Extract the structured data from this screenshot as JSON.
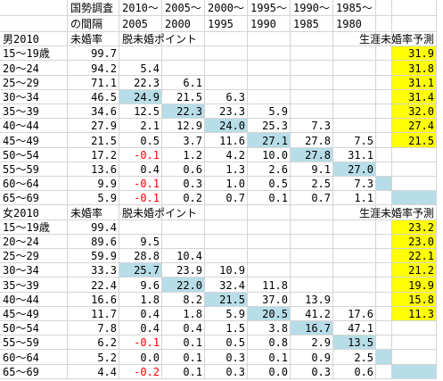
{
  "table": {
    "header": [
      [
        "国勢調査",
        "2010～",
        "2005～",
        "2000～",
        "1995～",
        "1990～",
        "1985～"
      ],
      [
        "の間隔",
        "2005",
        "2000",
        "1995",
        "1990",
        "1985",
        "1980"
      ]
    ],
    "sections": [
      {
        "title": "男2010",
        "rate_label": "未婚率",
        "points_label": "脱未婚ポイント",
        "forecast_label": "生涯未婚率予測",
        "rows": [
          {
            "age": "15～19歳",
            "rate": "99.7",
            "points": [],
            "forecast": "31.9"
          },
          {
            "age": "20～24",
            "rate": "94.2",
            "points": [
              "5.4"
            ],
            "forecast": "31.8"
          },
          {
            "age": "25～29",
            "rate": "71.1",
            "points": [
              "22.3",
              "6.1"
            ],
            "forecast": "31.1"
          },
          {
            "age": "30～34",
            "rate": "46.5",
            "points": [
              "24.9",
              "21.5",
              "6.3"
            ],
            "forecast": "31.4"
          },
          {
            "age": "35～39",
            "rate": "34.6",
            "points": [
              "12.5",
              "22.3",
              "23.3",
              "5.9"
            ],
            "forecast": "32.0"
          },
          {
            "age": "40～44",
            "rate": "27.9",
            "points": [
              "2.1",
              "12.9",
              "24.0",
              "25.3",
              "7.3"
            ],
            "forecast": "27.4"
          },
          {
            "age": "45～49",
            "rate": "21.5",
            "points": [
              "0.5",
              "3.7",
              "11.6",
              "27.1",
              "27.8",
              "7.5"
            ],
            "forecast": "21.5"
          },
          {
            "age": "50～54",
            "rate": "17.2",
            "points": [
              "-0.1",
              "1.2",
              "4.2",
              "10.0",
              "27.8",
              "31.1"
            ]
          },
          {
            "age": "55～59",
            "rate": "13.6",
            "points": [
              "0.4",
              "0.6",
              "1.3",
              "2.6",
              "9.1",
              "27.0"
            ]
          },
          {
            "age": "60～64",
            "rate": "9.9",
            "points": [
              "-0.1",
              "0.3",
              "1.0",
              "0.5",
              "2.5",
              "7.3"
            ]
          },
          {
            "age": "65～69",
            "rate": "5.9",
            "points": [
              "-0.1",
              "0.2",
              "0.7",
              "0.1",
              "0.7",
              "1.1"
            ]
          }
        ]
      },
      {
        "title": "女2010",
        "rate_label": "未婚率",
        "points_label": "脱未婚ポイント",
        "forecast_label": "生涯未婚率予測",
        "rows": [
          {
            "age": "15～19歳",
            "rate": "99.4",
            "points": [],
            "forecast": "23.2"
          },
          {
            "age": "20～24",
            "rate": "89.6",
            "points": [
              "9.5"
            ],
            "forecast": "23.0"
          },
          {
            "age": "25～29",
            "rate": "59.9",
            "points": [
              "28.8",
              "10.4"
            ],
            "forecast": "22.1"
          },
          {
            "age": "30～34",
            "rate": "33.3",
            "points": [
              "25.7",
              "23.9",
              "10.9"
            ],
            "forecast": "21.2"
          },
          {
            "age": "35～39",
            "rate": "22.4",
            "points": [
              "9.6",
              "22.0",
              "32.4",
              "11.8"
            ],
            "forecast": "19.9"
          },
          {
            "age": "40～44",
            "rate": "16.6",
            "points": [
              "1.8",
              "8.2",
              "21.5",
              "37.0",
              "13.9"
            ],
            "forecast": "15.8"
          },
          {
            "age": "45～49",
            "rate": "11.7",
            "points": [
              "0.4",
              "1.8",
              "5.9",
              "20.5",
              "41.2",
              "17.6"
            ],
            "forecast": "11.3"
          },
          {
            "age": "50～54",
            "rate": "7.8",
            "points": [
              "0.4",
              "0.4",
              "1.5",
              "3.8",
              "16.7",
              "47.1"
            ]
          },
          {
            "age": "55～59",
            "rate": "6.2",
            "points": [
              "-0.1",
              "0.1",
              "0.5",
              "0.8",
              "2.9",
              "13.5"
            ]
          },
          {
            "age": "60～64",
            "rate": "5.2",
            "points": [
              "0.0",
              "0.1",
              "0.3",
              "0.1",
              "0.9",
              "2.5"
            ]
          },
          {
            "age": "65～69",
            "rate": "4.4",
            "points": [
              "-0.2",
              "0.1",
              "0.3",
              "0.0",
              "0.3",
              "0.6"
            ]
          }
        ]
      }
    ]
  }
}
